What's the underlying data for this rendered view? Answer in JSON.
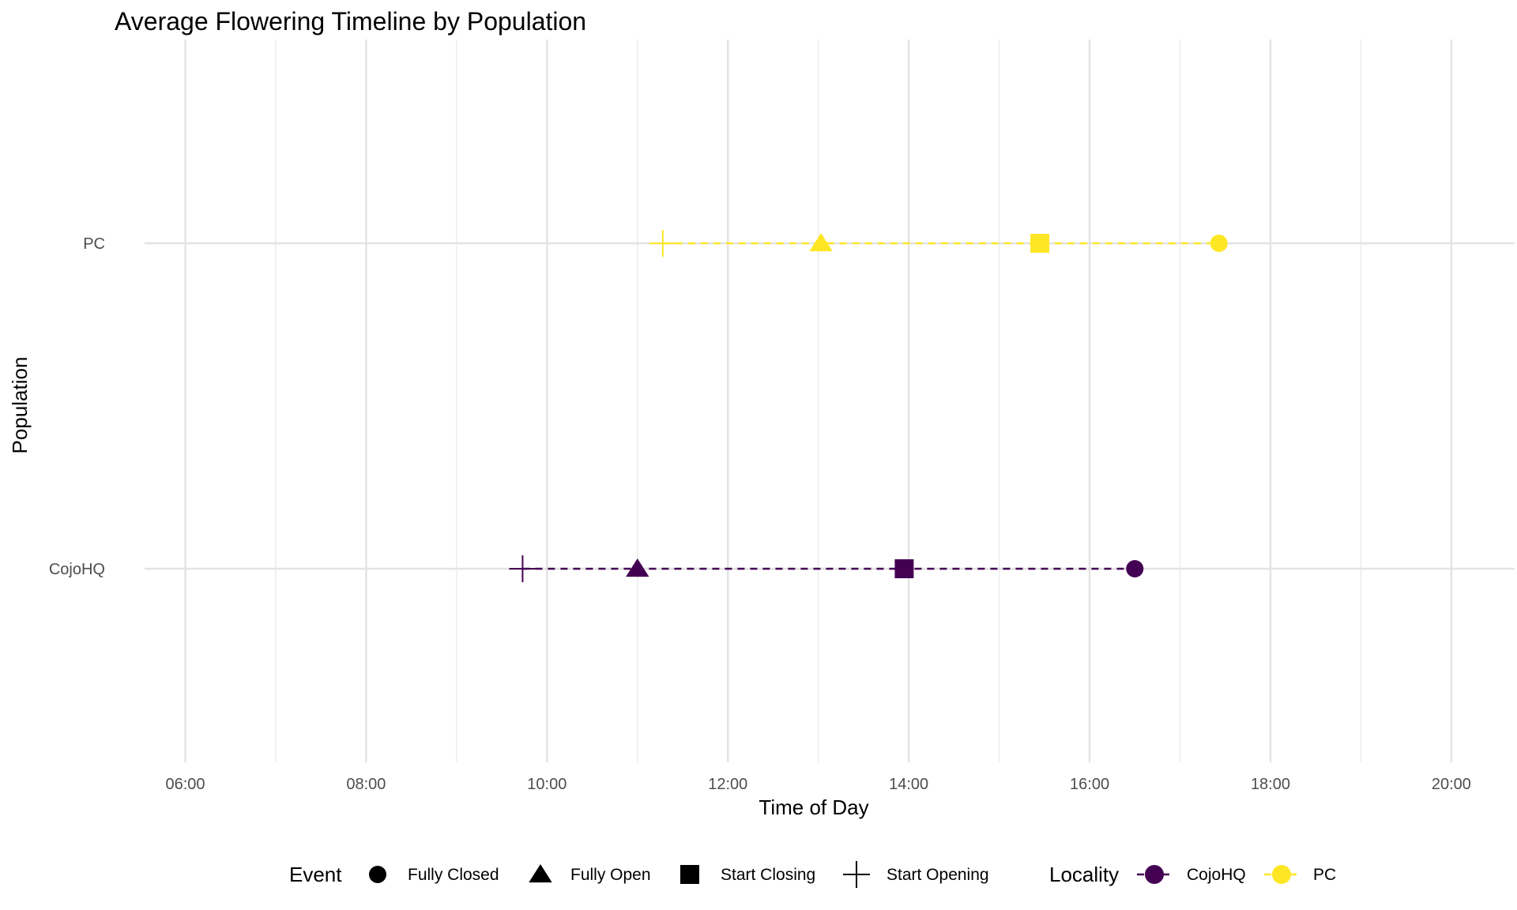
{
  "chart_data": {
    "type": "scatter",
    "title": "Average Flowering Timeline by Population",
    "xlabel": "Time of Day",
    "ylabel": "Population",
    "x_unit": "hours",
    "xlim": [
      5.55,
      20.7
    ],
    "x_ticks": [
      {
        "value": 6,
        "label": "06:00"
      },
      {
        "value": 8,
        "label": "08:00"
      },
      {
        "value": 10,
        "label": "10:00"
      },
      {
        "value": 12,
        "label": "12:00"
      },
      {
        "value": 14,
        "label": "14:00"
      },
      {
        "value": 16,
        "label": "16:00"
      },
      {
        "value": 18,
        "label": "18:00"
      },
      {
        "value": 20,
        "label": "20:00"
      }
    ],
    "x_minor_ticks": [
      7,
      9,
      11,
      13,
      15,
      17,
      19
    ],
    "categories": [
      "CojoHQ",
      "PC"
    ],
    "grid": true,
    "legend_position": "bottom",
    "events": [
      {
        "name": "Fully Closed",
        "shape": "circle"
      },
      {
        "name": "Fully Open",
        "shape": "triangle"
      },
      {
        "name": "Start Closing",
        "shape": "square"
      },
      {
        "name": "Start Opening",
        "shape": "plus"
      }
    ],
    "series": [
      {
        "name": "CojoHQ",
        "color": "#440154",
        "points": [
          {
            "event": "Start Opening",
            "x": 9.73
          },
          {
            "event": "Fully Open",
            "x": 11.0
          },
          {
            "event": "Start Closing",
            "x": 13.95
          },
          {
            "event": "Fully Closed",
            "x": 16.5
          }
        ]
      },
      {
        "name": "PC",
        "color": "#FDE725",
        "points": [
          {
            "event": "Start Opening",
            "x": 11.28
          },
          {
            "event": "Fully Open",
            "x": 13.03
          },
          {
            "event": "Start Closing",
            "x": 15.45
          },
          {
            "event": "Fully Closed",
            "x": 17.43
          }
        ]
      }
    ],
    "legends": {
      "event_title": "Event",
      "locality_title": "Locality"
    }
  }
}
